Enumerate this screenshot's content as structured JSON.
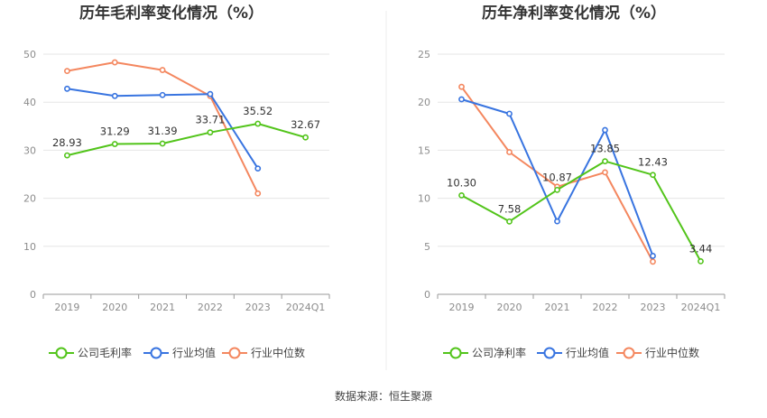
{
  "source_text": "数据来源：恒生聚源",
  "chart_data": [
    {
      "type": "line",
      "title": "历年毛利率变化情况（%）",
      "categories": [
        "2019",
        "2020",
        "2021",
        "2022",
        "2023",
        "2024Q1"
      ],
      "ylim": [
        0,
        50
      ],
      "yticks": [
        0,
        10,
        20,
        30,
        40,
        50
      ],
      "grid": true,
      "legend_position": "bottom",
      "series": [
        {
          "name": "公司毛利率",
          "color": "#52c41a",
          "values": [
            28.93,
            31.29,
            31.39,
            33.71,
            35.52,
            32.67
          ],
          "labels": [
            "28.93",
            "31.29",
            "31.39",
            "33.71",
            "35.52",
            "32.67"
          ]
        },
        {
          "name": "行业均值",
          "color": "#3874e0",
          "values": [
            42.8,
            41.3,
            41.5,
            41.7,
            26.2,
            null
          ]
        },
        {
          "name": "行业中位数",
          "color": "#f4875f",
          "values": [
            46.5,
            48.3,
            46.7,
            41.3,
            21.0,
            null
          ]
        }
      ]
    },
    {
      "type": "line",
      "title": "历年净利率变化情况（%）",
      "categories": [
        "2019",
        "2020",
        "2021",
        "2022",
        "2023",
        "2024Q1"
      ],
      "ylim": [
        0,
        25
      ],
      "yticks": [
        0,
        5,
        10,
        15,
        20,
        25
      ],
      "grid": true,
      "legend_position": "bottom",
      "series": [
        {
          "name": "公司净利率",
          "color": "#52c41a",
          "values": [
            10.3,
            7.58,
            10.87,
            13.85,
            12.43,
            3.44
          ],
          "labels": [
            "10.30",
            "7.58",
            "10.87",
            "13.85",
            "12.43",
            "3.44"
          ]
        },
        {
          "name": "行业均值",
          "color": "#3874e0",
          "values": [
            20.3,
            18.8,
            7.6,
            17.1,
            4.0,
            null
          ]
        },
        {
          "name": "行业中位数",
          "color": "#f4875f",
          "values": [
            21.6,
            14.8,
            11.2,
            12.7,
            3.4,
            null
          ]
        }
      ]
    }
  ]
}
